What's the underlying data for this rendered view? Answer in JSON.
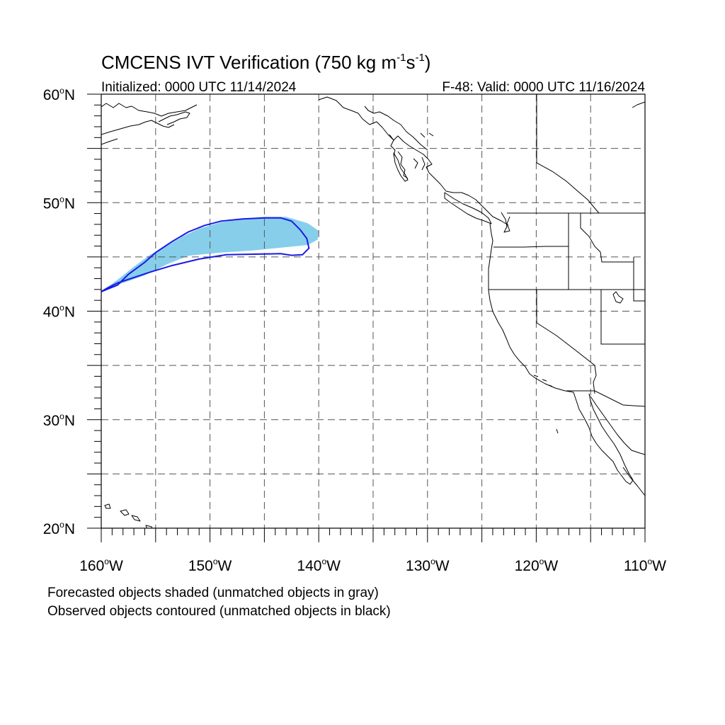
{
  "header": {
    "title_main": "CMCENS IVT Verification (750 kg m",
    "title_sup1": "-1",
    "title_mid": "s",
    "title_sup2": "-1",
    "title_end": ")",
    "initialized": "Initialized: 0000 UTC 11/14/2024",
    "valid": "F-48: Valid: 0000 UTC 11/16/2024"
  },
  "map": {
    "lon_range": [
      -160,
      -110
    ],
    "lat_range": [
      20,
      60
    ],
    "gridlines": "dashed every 5 degrees",
    "lat_labels": [
      {
        "lat": 60,
        "num": "60",
        "hemi": "N"
      },
      {
        "lat": 50,
        "num": "50",
        "hemi": "N"
      },
      {
        "lat": 40,
        "num": "40",
        "hemi": "N"
      },
      {
        "lat": 30,
        "num": "30",
        "hemi": "N"
      },
      {
        "lat": 20,
        "num": "20",
        "hemi": "N"
      }
    ],
    "lon_labels": [
      {
        "lon": -160,
        "num": "160",
        "hemi": "W"
      },
      {
        "lon": -150,
        "num": "150",
        "hemi": "W"
      },
      {
        "lon": -140,
        "num": "140",
        "hemi": "W"
      },
      {
        "lon": -130,
        "num": "130",
        "hemi": "W"
      },
      {
        "lon": -120,
        "num": "120",
        "hemi": "W"
      },
      {
        "lon": -110,
        "num": "110",
        "hemi": "W"
      }
    ],
    "forecast_object": {
      "fill_color": "#87ceeb",
      "outline_lonlat": [
        [
          -160,
          41.8
        ],
        [
          -158.5,
          42.9
        ],
        [
          -157,
          44.1
        ],
        [
          -155.5,
          45.2
        ],
        [
          -154,
          46
        ],
        [
          -152.5,
          46.9
        ],
        [
          -151,
          47.6
        ],
        [
          -149,
          48.2
        ],
        [
          -147,
          48.5
        ],
        [
          -145,
          48.7
        ],
        [
          -143,
          48.7
        ],
        [
          -141,
          48.1
        ],
        [
          -140,
          47.4
        ],
        [
          -140.1,
          46.6
        ],
        [
          -141,
          46.1
        ],
        [
          -143,
          45.9
        ],
        [
          -146,
          45.6
        ],
        [
          -149,
          45.4
        ],
        [
          -152,
          45.1
        ],
        [
          -154,
          44.3
        ],
        [
          -156,
          43.3
        ],
        [
          -158,
          42.6
        ],
        [
          -159.5,
          42.1
        ]
      ]
    },
    "observed_object": {
      "line_color": "#1a1ae6",
      "outline_lonlat": [
        [
          -160,
          41.8
        ],
        [
          -158.5,
          42.4
        ],
        [
          -157.5,
          43.4
        ],
        [
          -156,
          44.5
        ],
        [
          -155,
          45.4
        ],
        [
          -153.5,
          46.4
        ],
        [
          -152,
          47.3
        ],
        [
          -150.5,
          47.9
        ],
        [
          -149,
          48.3
        ],
        [
          -147,
          48.5
        ],
        [
          -145,
          48.6
        ],
        [
          -143.5,
          48.6
        ],
        [
          -142.5,
          48.3
        ],
        [
          -141.7,
          47.5
        ],
        [
          -141.1,
          46.7
        ],
        [
          -140.9,
          45.8
        ],
        [
          -141.5,
          45.2
        ],
        [
          -142.5,
          45.15
        ],
        [
          -143.5,
          45.3
        ],
        [
          -146,
          45.25
        ],
        [
          -148.5,
          45.2
        ],
        [
          -151,
          44.8
        ],
        [
          -153.5,
          44.2
        ],
        [
          -155.5,
          43.6
        ],
        [
          -157,
          43.1
        ],
        [
          -158.5,
          42.6
        ],
        [
          -159.5,
          42.1
        ]
      ]
    },
    "coast_color": "#000000"
  },
  "captions": {
    "line1": "Forecasted objects shaded (unmatched objects in gray)",
    "line2": "Observed objects contoured (unmatched objects in black)"
  }
}
